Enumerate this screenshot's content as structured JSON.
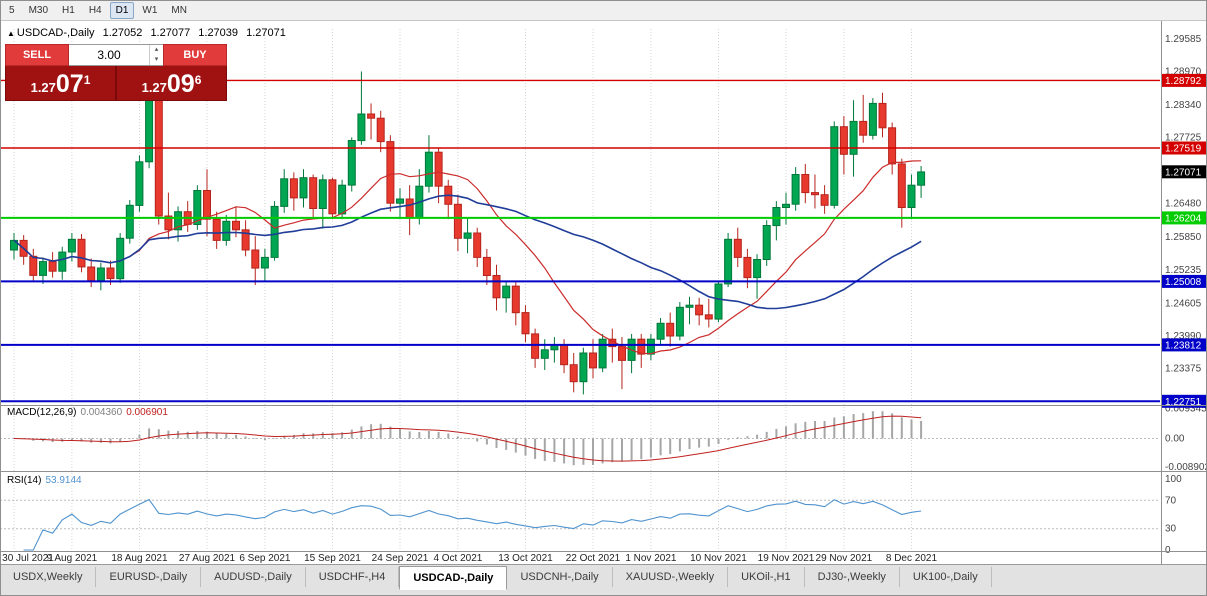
{
  "toolbar": {
    "timeframes": [
      {
        "label": "5",
        "active": false
      },
      {
        "label": "M30",
        "active": false
      },
      {
        "label": "H1",
        "active": false
      },
      {
        "label": "H4",
        "active": false
      },
      {
        "label": "D1",
        "active": true
      },
      {
        "label": "W1",
        "active": false
      },
      {
        "label": "MN",
        "active": false
      }
    ]
  },
  "chart": {
    "readout": {
      "marker": "▲",
      "symbol": "USDCAD-,Daily",
      "open": "1.27052",
      "high": "1.27077",
      "low": "1.27039",
      "close": "1.27071"
    },
    "trade_panel": {
      "sell_label": "SELL",
      "buy_label": "BUY",
      "volume": "3.00",
      "spin_up": "▴",
      "spin_down": "▾",
      "sell_price": {
        "prefix": "1.27",
        "big": "07",
        "pip": "1"
      },
      "buy_price": {
        "prefix": "1.27",
        "big": "09",
        "pip": "6"
      }
    }
  },
  "macd_panel": {
    "title": "MACD(12,26,9)",
    "value_main": "0.004360",
    "value_signal": "0.006901",
    "ticks": [
      "0.009345",
      "0.00",
      "-0.008902"
    ]
  },
  "rsi_panel": {
    "title": "RSI(14)",
    "value": "53.9144",
    "ticks": [
      100,
      70,
      30,
      0
    ],
    "guides": [
      70,
      30
    ]
  },
  "tabs": [
    {
      "label": "USDX,Weekly",
      "active": false
    },
    {
      "label": "EURUSD-,Daily",
      "active": false
    },
    {
      "label": "AUDUSD-,Daily",
      "active": false
    },
    {
      "label": "USDCHF-,H4",
      "active": false
    },
    {
      "label": "USDCAD-,Daily",
      "active": true
    },
    {
      "label": "USDCNH-,Daily",
      "active": false
    },
    {
      "label": "XAUUSD-,Weekly",
      "active": false
    },
    {
      "label": "UKOil-,H1",
      "active": false
    },
    {
      "label": "DJ30-,Weekly",
      "active": false
    },
    {
      "label": "UK100-,Daily",
      "active": false
    }
  ],
  "chart_data": {
    "type": "candlestick",
    "symbol": "USDCAD",
    "timeframe": "Daily",
    "current_price": "1.27071",
    "price_ticks": [
      "1.29585",
      "1.28970",
      "1.28340",
      "1.27725",
      "1.26480",
      "1.25850",
      "1.25235",
      "1.24605",
      "1.23990",
      "1.23375"
    ],
    "levels": [
      {
        "price": "1.28792",
        "color": "#d40000",
        "width": 1.4
      },
      {
        "price": "1.27519",
        "color": "#d40000",
        "width": 1.4
      },
      {
        "price": "1.26204",
        "color": "#00cc00",
        "width": 2
      },
      {
        "price": "1.25008",
        "color": "#0000c8",
        "width": 2
      },
      {
        "price": "1.23812",
        "color": "#0000c8",
        "width": 2
      },
      {
        "price": "1.22751",
        "color": "#0000c8",
        "width": 2
      }
    ],
    "x_ticks": [
      {
        "index": 0,
        "label": "30 Jul 2021"
      },
      {
        "index": 6,
        "label": "9 Aug 2021"
      },
      {
        "index": 13,
        "label": "18 Aug 2021"
      },
      {
        "index": 20,
        "label": "27 Aug 2021"
      },
      {
        "index": 26,
        "label": "6 Sep 2021"
      },
      {
        "index": 33,
        "label": "15 Sep 2021"
      },
      {
        "index": 40,
        "label": "24 Sep 2021"
      },
      {
        "index": 46,
        "label": "4 Oct 2021"
      },
      {
        "index": 53,
        "label": "13 Oct 2021"
      },
      {
        "index": 60,
        "label": "22 Oct 2021"
      },
      {
        "index": 66,
        "label": "1 Nov 2021"
      },
      {
        "index": 73,
        "label": "10 Nov 2021"
      },
      {
        "index": 80,
        "label": "19 Nov 2021"
      },
      {
        "index": 86,
        "label": "29 Nov 2021"
      },
      {
        "index": 93,
        "label": "8 Dec 2021"
      }
    ],
    "overlays": {
      "ma_fast": {
        "period": 13,
        "color": "#cc2b2b"
      },
      "ma_slow": {
        "period": 34,
        "color": "#1f3d99"
      }
    },
    "indicators": {
      "macd": {
        "fast": 12,
        "slow": 26,
        "signal": 9
      },
      "rsi": {
        "period": 14
      }
    },
    "candles": [
      [
        "07-30",
        1.256,
        1.2592,
        1.2542,
        1.2578
      ],
      [
        "08-02",
        1.2578,
        1.2588,
        1.2532,
        1.2548
      ],
      [
        "08-03",
        1.2548,
        1.2562,
        1.25,
        1.2512
      ],
      [
        "08-04",
        1.2512,
        1.2546,
        1.2496,
        1.2538
      ],
      [
        "08-05",
        1.2538,
        1.2556,
        1.2508,
        1.252
      ],
      [
        "08-06",
        1.252,
        1.2566,
        1.2504,
        1.2556
      ],
      [
        "08-09",
        1.2556,
        1.2592,
        1.2538,
        1.258
      ],
      [
        "08-10",
        1.258,
        1.259,
        1.2518,
        1.2528
      ],
      [
        "08-11",
        1.2528,
        1.2544,
        1.249,
        1.2502
      ],
      [
        "08-12",
        1.2502,
        1.2536,
        1.2484,
        1.2526
      ],
      [
        "08-13",
        1.2526,
        1.254,
        1.2494,
        1.2506
      ],
      [
        "08-16",
        1.2506,
        1.2592,
        1.2498,
        1.2582
      ],
      [
        "08-17",
        1.2582,
        1.2654,
        1.2572,
        1.2644
      ],
      [
        "08-18",
        1.2644,
        1.2738,
        1.2632,
        1.2726
      ],
      [
        "08-19",
        1.2726,
        1.2856,
        1.2714,
        1.2842
      ],
      [
        "08-20",
        1.2842,
        1.2852,
        1.2608,
        1.2624
      ],
      [
        "08-23",
        1.2624,
        1.2668,
        1.258,
        1.2598
      ],
      [
        "08-24",
        1.2598,
        1.2642,
        1.2576,
        1.2632
      ],
      [
        "08-25",
        1.2632,
        1.2652,
        1.2594,
        1.2608
      ],
      [
        "08-26",
        1.2608,
        1.2682,
        1.2598,
        1.2672
      ],
      [
        "08-27",
        1.2672,
        1.2712,
        1.2586,
        1.2618
      ],
      [
        "08-30",
        1.2618,
        1.2632,
        1.2562,
        1.2578
      ],
      [
        "08-31",
        1.2578,
        1.2626,
        1.2568,
        1.2614
      ],
      [
        "09-01",
        1.2614,
        1.2642,
        1.2584,
        1.2598
      ],
      [
        "09-02",
        1.2598,
        1.2616,
        1.2548,
        1.256
      ],
      [
        "09-03",
        1.256,
        1.2586,
        1.2494,
        1.2526
      ],
      [
        "09-06",
        1.2526,
        1.2562,
        1.2502,
        1.2546
      ],
      [
        "09-07",
        1.2546,
        1.2652,
        1.254,
        1.2642
      ],
      [
        "09-08",
        1.2642,
        1.2712,
        1.263,
        1.2694
      ],
      [
        "09-09",
        1.2694,
        1.2706,
        1.2634,
        1.2658
      ],
      [
        "09-10",
        1.2658,
        1.2712,
        1.264,
        1.2696
      ],
      [
        "09-13",
        1.2696,
        1.2702,
        1.2618,
        1.2638
      ],
      [
        "09-14",
        1.2638,
        1.2702,
        1.26,
        1.2692
      ],
      [
        "09-15",
        1.2692,
        1.2696,
        1.2618,
        1.2628
      ],
      [
        "09-16",
        1.2628,
        1.2692,
        1.2618,
        1.2682
      ],
      [
        "09-17",
        1.2682,
        1.2772,
        1.267,
        1.2766
      ],
      [
        "09-20",
        1.2766,
        1.2896,
        1.2758,
        1.2816
      ],
      [
        "09-21",
        1.2816,
        1.2836,
        1.2768,
        1.2808
      ],
      [
        "09-22",
        1.2808,
        1.2822,
        1.2744,
        1.2764
      ],
      [
        "09-23",
        1.2764,
        1.2776,
        1.2632,
        1.2648
      ],
      [
        "09-24",
        1.2648,
        1.2676,
        1.2618,
        1.2656
      ],
      [
        "09-27",
        1.2656,
        1.2682,
        1.2588,
        1.262
      ],
      [
        "09-28",
        1.262,
        1.2712,
        1.2608,
        1.268
      ],
      [
        "09-29",
        1.268,
        1.2776,
        1.2668,
        1.2744
      ],
      [
        "09-30",
        1.2744,
        1.2752,
        1.2648,
        1.268
      ],
      [
        "10-01",
        1.268,
        1.2692,
        1.2618,
        1.2646
      ],
      [
        "10-04",
        1.2646,
        1.2664,
        1.2558,
        1.2582
      ],
      [
        "10-05",
        1.2582,
        1.2622,
        1.2554,
        1.2592
      ],
      [
        "10-06",
        1.2592,
        1.2602,
        1.2528,
        1.2546
      ],
      [
        "10-07",
        1.2546,
        1.2562,
        1.2494,
        1.2512
      ],
      [
        "10-08",
        1.2512,
        1.2532,
        1.2446,
        1.247
      ],
      [
        "10-11",
        1.247,
        1.2502,
        1.2442,
        1.2492
      ],
      [
        "10-12",
        1.2492,
        1.2502,
        1.2418,
        1.2442
      ],
      [
        "10-13",
        1.2442,
        1.2456,
        1.2386,
        1.2402
      ],
      [
        "10-14",
        1.2402,
        1.2412,
        1.2338,
        1.2356
      ],
      [
        "10-15",
        1.2356,
        1.2392,
        1.2334,
        1.2372
      ],
      [
        "10-18",
        1.2372,
        1.2396,
        1.2348,
        1.2382
      ],
      [
        "10-19",
        1.2382,
        1.2392,
        1.2328,
        1.2344
      ],
      [
        "10-20",
        1.2344,
        1.2366,
        1.2292,
        1.2312
      ],
      [
        "10-21",
        1.2312,
        1.2376,
        1.2288,
        1.2366
      ],
      [
        "10-22",
        1.2366,
        1.2392,
        1.2318,
        1.2338
      ],
      [
        "10-25",
        1.2338,
        1.2402,
        1.233,
        1.2392
      ],
      [
        "10-26",
        1.2392,
        1.2412,
        1.2348,
        1.2378
      ],
      [
        "10-27",
        1.2378,
        1.2396,
        1.2298,
        1.2352
      ],
      [
        "10-28",
        1.2352,
        1.2402,
        1.2328,
        1.2392
      ],
      [
        "10-29",
        1.2392,
        1.2402,
        1.2338,
        1.2364
      ],
      [
        "11-01",
        1.2364,
        1.2402,
        1.2352,
        1.2392
      ],
      [
        "11-02",
        1.2392,
        1.2432,
        1.238,
        1.2422
      ],
      [
        "11-03",
        1.2422,
        1.2442,
        1.2378,
        1.2398
      ],
      [
        "11-04",
        1.2398,
        1.2462,
        1.239,
        1.2452
      ],
      [
        "11-05",
        1.2452,
        1.2472,
        1.242,
        1.2456
      ],
      [
        "11-08",
        1.2456,
        1.247,
        1.2418,
        1.2438
      ],
      [
        "11-09",
        1.2438,
        1.2468,
        1.2414,
        1.243
      ],
      [
        "11-10",
        1.243,
        1.2502,
        1.2424,
        1.2496
      ],
      [
        "11-11",
        1.2496,
        1.2592,
        1.249,
        1.258
      ],
      [
        "11-12",
        1.258,
        1.2602,
        1.2528,
        1.2546
      ],
      [
        "11-15",
        1.2546,
        1.2562,
        1.2488,
        1.2508
      ],
      [
        "11-16",
        1.2508,
        1.2552,
        1.2468,
        1.2542
      ],
      [
        "11-17",
        1.2542,
        1.2616,
        1.253,
        1.2606
      ],
      [
        "11-18",
        1.2606,
        1.2652,
        1.2578,
        1.264
      ],
      [
        "11-19",
        1.264,
        1.2668,
        1.2608,
        1.2646
      ],
      [
        "11-22",
        1.2646,
        1.2716,
        1.2634,
        1.2702
      ],
      [
        "11-23",
        1.2702,
        1.2722,
        1.2648,
        1.2668
      ],
      [
        "11-24",
        1.2668,
        1.2702,
        1.2638,
        1.2664
      ],
      [
        "11-25",
        1.2664,
        1.2682,
        1.2628,
        1.2644
      ],
      [
        "11-26",
        1.2644,
        1.2802,
        1.2638,
        1.2792
      ],
      [
        "11-29",
        1.2792,
        1.2812,
        1.2702,
        1.274
      ],
      [
        "11-30",
        1.274,
        1.2842,
        1.2698,
        1.2802
      ],
      [
        "12-01",
        1.2802,
        1.2852,
        1.2762,
        1.2776
      ],
      [
        "12-02",
        1.2776,
        1.2846,
        1.2768,
        1.2836
      ],
      [
        "12-03",
        1.2836,
        1.2856,
        1.2772,
        1.279
      ],
      [
        "12-06",
        1.279,
        1.28,
        1.2702,
        1.2722
      ],
      [
        "12-07",
        1.2722,
        1.2732,
        1.2602,
        1.264
      ],
      [
        "12-08",
        1.264,
        1.2702,
        1.2618,
        1.2682
      ],
      [
        "12-09",
        1.2682,
        1.2718,
        1.2658,
        1.2707
      ]
    ]
  }
}
